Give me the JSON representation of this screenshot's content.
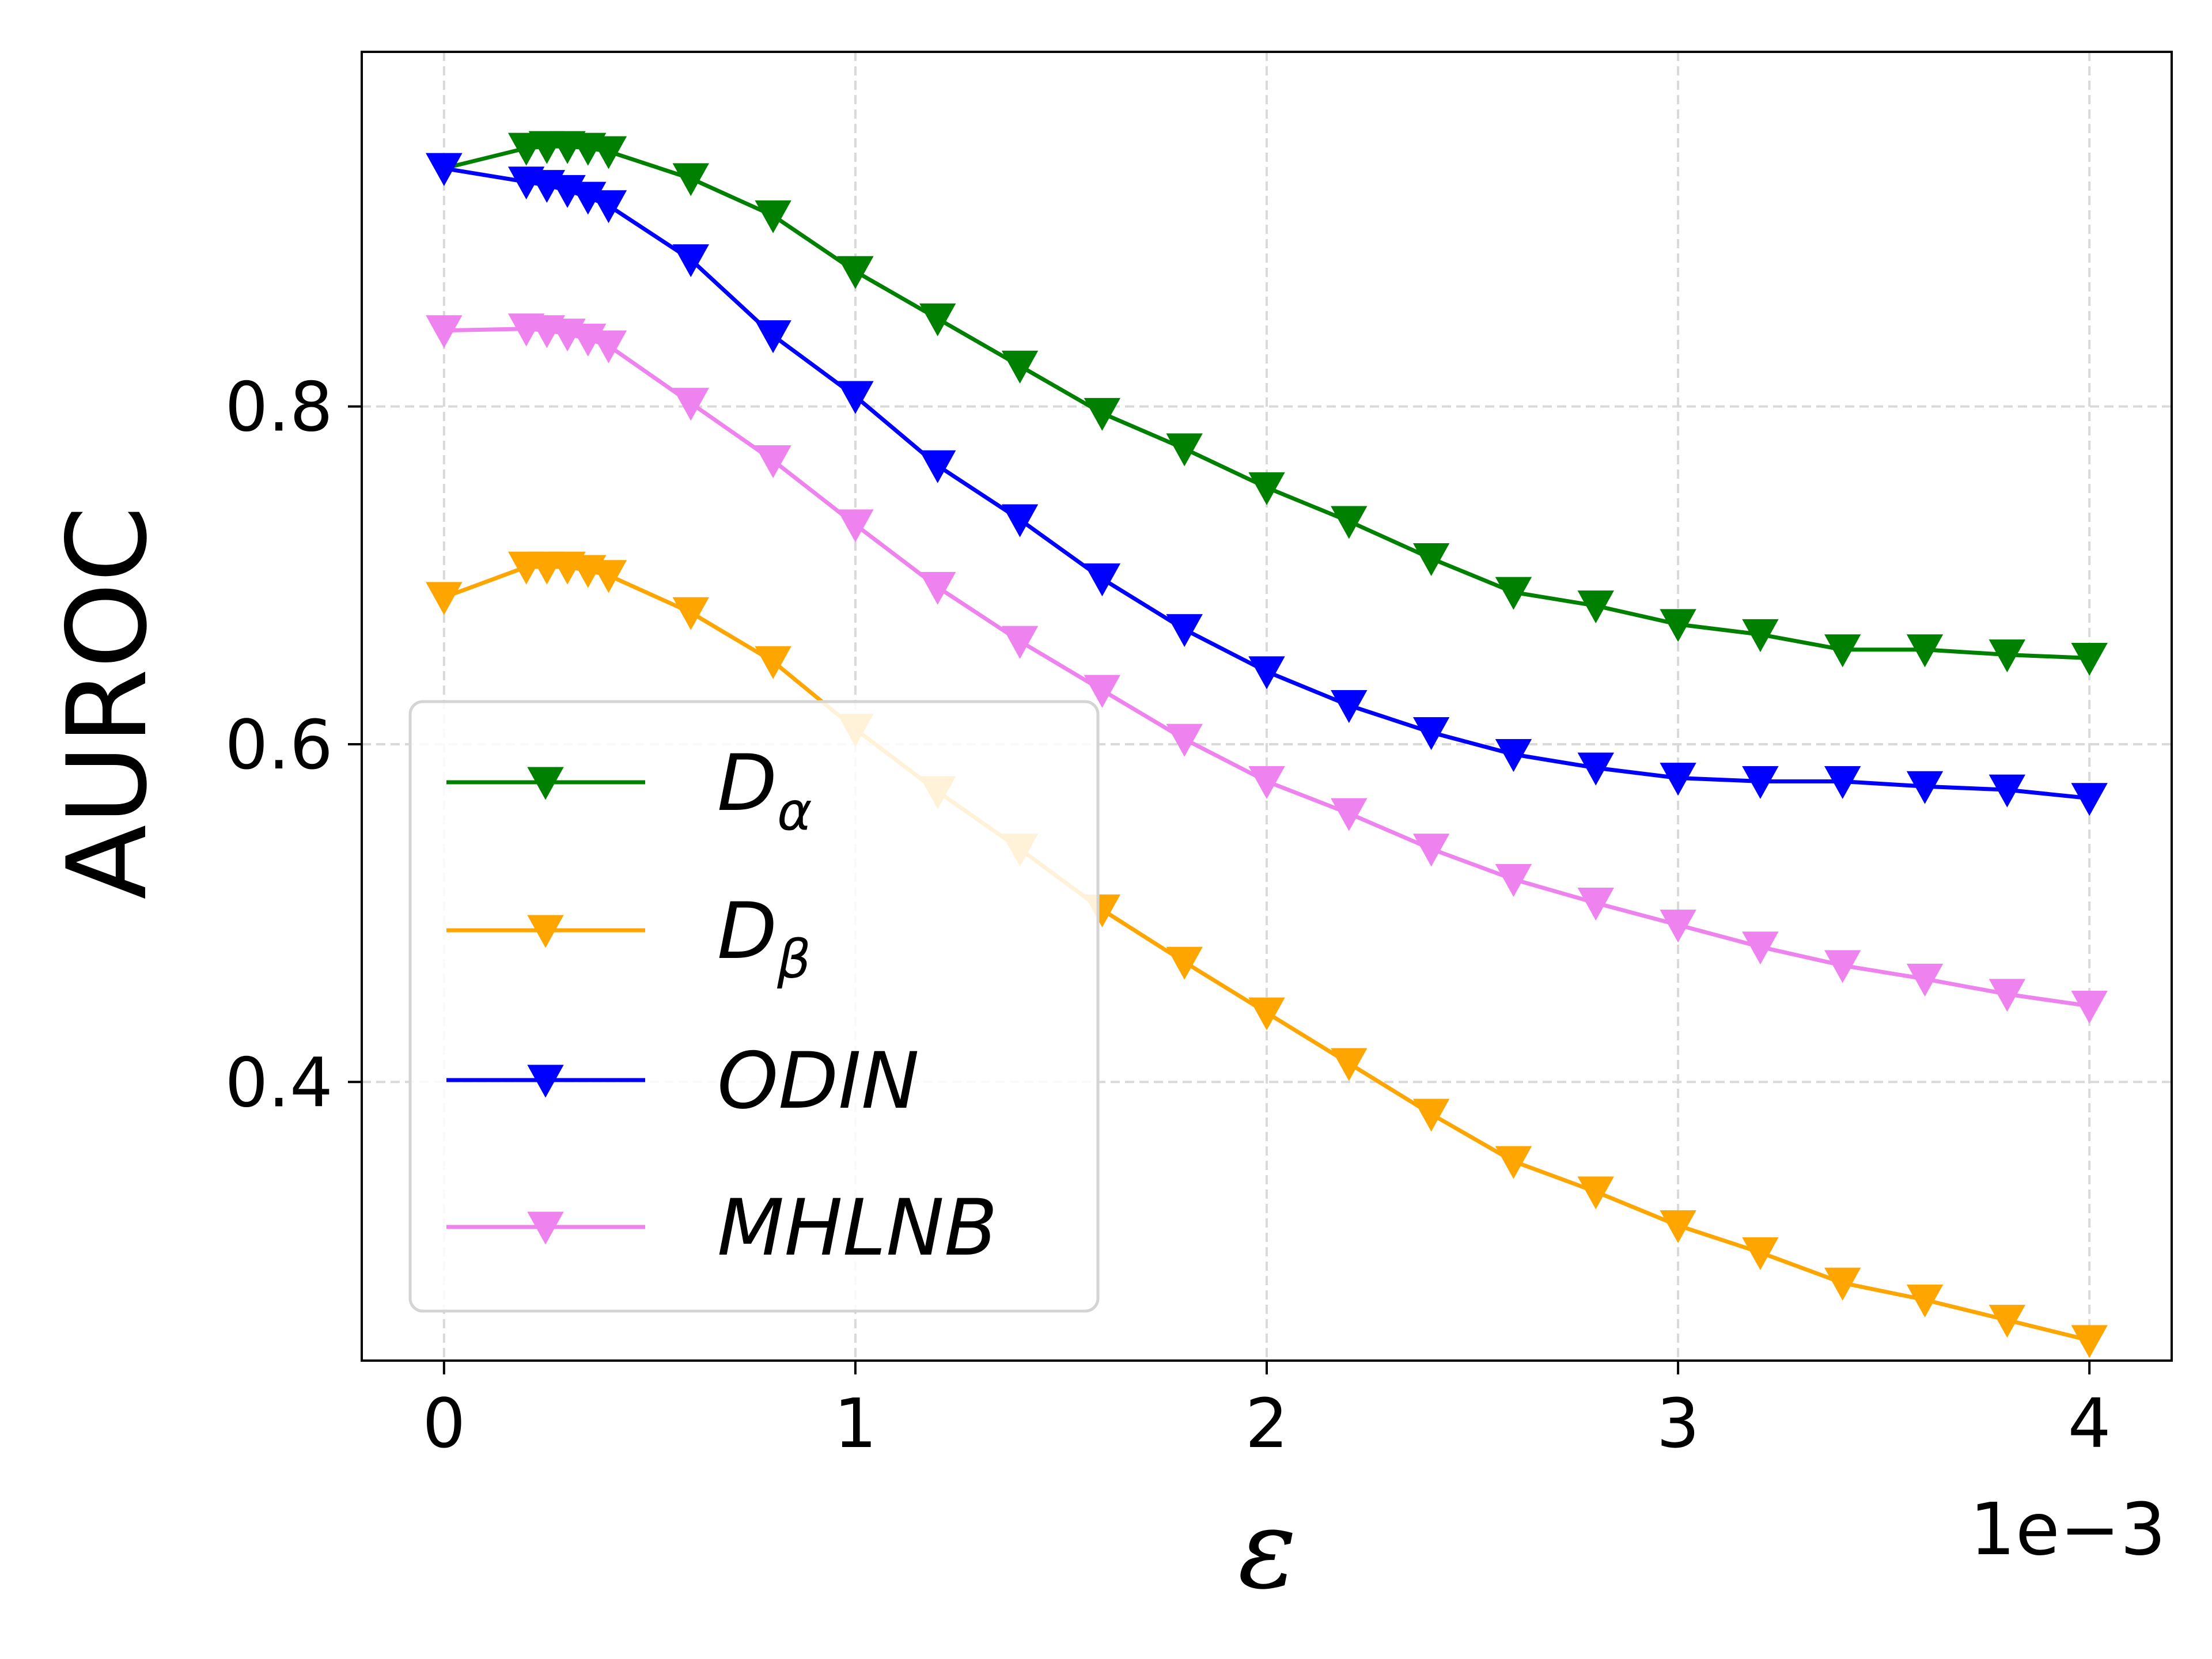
{
  "chart_data": {
    "type": "line",
    "title": "",
    "xlabel": "ε",
    "ylabel": "AUROC",
    "x_offset_text": "1e−3",
    "x_scale": 0.001,
    "xlim": [
      -0.2,
      4.2
    ],
    "ylim": [
      0.235,
      1.01
    ],
    "grid": true,
    "legend_position": "lower-left",
    "x_ticks": [
      {
        "value": 0,
        "label": "0"
      },
      {
        "value": 1,
        "label": "1"
      },
      {
        "value": 2,
        "label": "2"
      },
      {
        "value": 3,
        "label": "3"
      },
      {
        "value": 4,
        "label": "4"
      }
    ],
    "y_ticks": [
      {
        "value": 0.4,
        "label": "0.4"
      },
      {
        "value": 0.6,
        "label": "0.6"
      },
      {
        "value": 0.8,
        "label": "0.8"
      }
    ],
    "x": [
      0,
      0.2,
      0.25,
      0.3,
      0.35,
      0.4,
      0.6,
      0.8,
      1.0,
      1.2,
      1.4,
      1.6,
      1.8,
      2.0,
      2.2,
      2.4,
      2.6,
      2.8,
      3.0,
      3.2,
      3.4,
      3.6,
      3.8,
      4.0
    ],
    "series": [
      {
        "name": "D_α",
        "legend_main": "D",
        "legend_sub": "α",
        "color": "#008000",
        "marker": "triangle-down",
        "values": [
          0.941,
          0.953,
          0.954,
          0.954,
          0.953,
          0.951,
          0.935,
          0.913,
          0.88,
          0.852,
          0.824,
          0.796,
          0.775,
          0.752,
          0.732,
          0.71,
          0.69,
          0.682,
          0.671,
          0.665,
          0.656,
          0.656,
          0.653,
          0.651
        ]
      },
      {
        "name": "D_β",
        "legend_main": "D",
        "legend_sub": "β",
        "color": "#ffa500",
        "marker": "triangle-down",
        "values": [
          0.687,
          0.705,
          0.705,
          0.705,
          0.703,
          0.7,
          0.678,
          0.649,
          0.609,
          0.572,
          0.538,
          0.502,
          0.471,
          0.441,
          0.411,
          0.381,
          0.353,
          0.335,
          0.315,
          0.299,
          0.281,
          0.271,
          0.259,
          0.247
        ]
      },
      {
        "name": "ODIN",
        "legend_main": "ODIN",
        "legend_sub": "",
        "color": "#0000ff",
        "marker": "triangle-down",
        "values": [
          0.941,
          0.933,
          0.931,
          0.928,
          0.924,
          0.919,
          0.887,
          0.842,
          0.806,
          0.765,
          0.733,
          0.698,
          0.668,
          0.643,
          0.623,
          0.607,
          0.594,
          0.586,
          0.58,
          0.578,
          0.578,
          0.575,
          0.573,
          0.568
        ]
      },
      {
        "name": "MHLNB",
        "legend_main": "MHLNB",
        "legend_sub": "",
        "color": "#ee82ee",
        "marker": "triangle-down",
        "values": [
          0.845,
          0.846,
          0.845,
          0.843,
          0.84,
          0.836,
          0.802,
          0.768,
          0.73,
          0.693,
          0.661,
          0.632,
          0.603,
          0.578,
          0.559,
          0.538,
          0.52,
          0.506,
          0.493,
          0.48,
          0.469,
          0.461,
          0.452,
          0.445
        ]
      }
    ]
  }
}
